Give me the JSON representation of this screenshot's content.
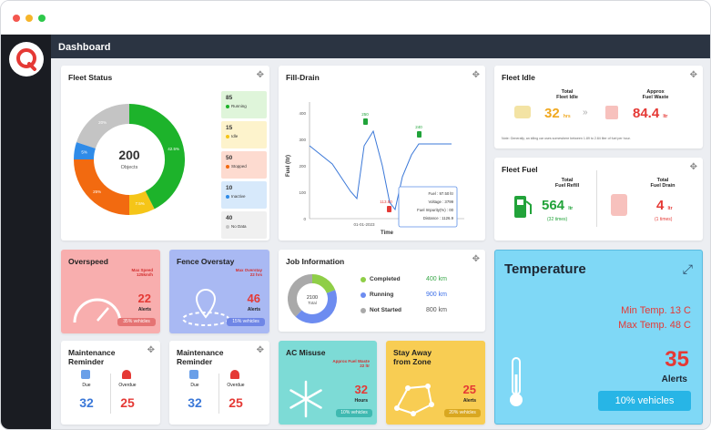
{
  "window": {
    "title": "Dashboard"
  },
  "fleet_status": {
    "title": "Fleet Status",
    "center_value": "200",
    "center_label": "Objects",
    "segments": [
      {
        "label": "Running",
        "value": 85,
        "pct": "42.5%",
        "color": "#1db32b"
      },
      {
        "label": "Idle",
        "value": 15,
        "pct": "7.5%",
        "color": "#f5c518"
      },
      {
        "label": "Stopped",
        "value": 50,
        "pct": "25%",
        "color": "#f26a10"
      },
      {
        "label": "Inactive",
        "value": 10,
        "pct": "5%",
        "color": "#2f8be8"
      },
      {
        "label": "No Data",
        "value": 40,
        "pct": "20%",
        "color": "#c4c4c4"
      }
    ]
  },
  "fill_drain": {
    "title": "Fill-Drain",
    "ylabel": "Fuel (ltr)",
    "xlabel": "Time",
    "xtick": "01-01-2023",
    "yticks": [
      "400",
      "300",
      "200",
      "100",
      "0"
    ],
    "markers": [
      "250",
      "240",
      "113.50"
    ],
    "tooltip": {
      "fuel": "Fuel : 97.50 ltr",
      "voltage": "Voltage : 3799",
      "impurity": "Fuel Impurity(%) : 00",
      "distance": "Distance : 1126.9"
    }
  },
  "fleet_idle": {
    "title": "Fleet Idle",
    "total_label": "Total\nFleet Idle",
    "total_value": "32",
    "total_unit": "hrs",
    "waste_label": "Approx\nFuel Waste",
    "waste_value": "84.4",
    "waste_unit": "ltr",
    "note": "Note: Generally, an idling car uses somewhere between 1.89 to 2.84 liter of fuel per hour."
  },
  "fleet_fuel": {
    "title": "Fleet Fuel",
    "refill_label": "Total\nFuel Refill",
    "refill_value": "564",
    "refill_unit": "ltr",
    "refill_times": "(32 times)",
    "drain_label": "Total\nFuel Drain",
    "drain_value": "4",
    "drain_unit": "ltr",
    "drain_times": "(1 times)"
  },
  "overspeed": {
    "title": "Overspeed",
    "sub": "Max Speed\n125km/h",
    "value": "22",
    "label": "Alerts",
    "pill": "35% vehicles"
  },
  "fence": {
    "title": "Fence Overstay",
    "sub": "Max Overstay\n22 hrs",
    "value": "46",
    "label": "Alerts",
    "pill": "15% vehicles"
  },
  "job": {
    "title": "Job Information",
    "center_value": "2100",
    "center_label": "Total",
    "rows": [
      {
        "label": "Completed",
        "value": "400 km",
        "color": "#8fce47"
      },
      {
        "label": "Running",
        "value": "900 km",
        "color": "#6d8cf0"
      },
      {
        "label": "Not Started",
        "value": "800 km",
        "color": "#a9a9a9"
      }
    ]
  },
  "temperature": {
    "title": "Temperature",
    "min": "Min Temp. 13 C",
    "max": "Max Temp. 48 C",
    "value": "35",
    "label": "Alerts",
    "pill": "10% vehicles"
  },
  "maint1": {
    "title": "Maintenance\nReminder",
    "due_label": "Due",
    "due_value": "32",
    "overdue_label": "Overdue",
    "overdue_value": "25"
  },
  "maint2": {
    "title": "Maintenance\nReminder",
    "due_label": "Due",
    "due_value": "32",
    "overdue_label": "Overdue",
    "overdue_value": "25"
  },
  "ac": {
    "title": "AC Misuse",
    "sub": "Approx Fuel Waste\n22 ltr",
    "value": "32",
    "label": "Hours",
    "pill": "10% vehicles"
  },
  "stay": {
    "title": "Stay Away\nfrom Zone",
    "value": "25",
    "label": "Alerts",
    "pill": "20% vehicles"
  },
  "colors": {
    "accent_red": "#e53935",
    "accent_green": "#22a33a",
    "topbar": "#2b3442",
    "sidebar": "#1a1c22"
  }
}
